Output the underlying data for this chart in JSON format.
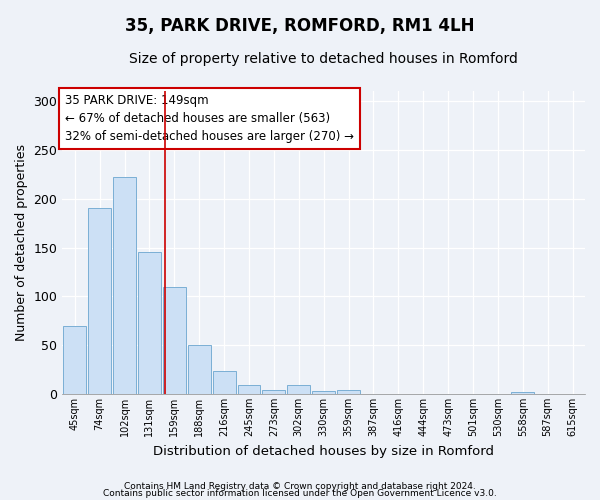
{
  "title1": "35, PARK DRIVE, ROMFORD, RM1 4LH",
  "title2": "Size of property relative to detached houses in Romford",
  "xlabel": "Distribution of detached houses by size in Romford",
  "ylabel": "Number of detached properties",
  "bar_labels": [
    "45sqm",
    "74sqm",
    "102sqm",
    "131sqm",
    "159sqm",
    "188sqm",
    "216sqm",
    "245sqm",
    "273sqm",
    "302sqm",
    "330sqm",
    "359sqm",
    "387sqm",
    "416sqm",
    "444sqm",
    "473sqm",
    "501sqm",
    "530sqm",
    "558sqm",
    "587sqm",
    "615sqm"
  ],
  "bar_values": [
    70,
    190,
    222,
    145,
    110,
    50,
    24,
    9,
    4,
    9,
    3,
    4,
    0,
    0,
    0,
    0,
    0,
    0,
    2,
    0,
    0
  ],
  "bar_color": "#cce0f5",
  "bar_edge_color": "#7aafd4",
  "vline_x_index": 3.62,
  "vline_color": "#cc0000",
  "annotation_text": "35 PARK DRIVE: 149sqm\n← 67% of detached houses are smaller (563)\n32% of semi-detached houses are larger (270) →",
  "annotation_box_color": "#ffffff",
  "annotation_box_edge": "#cc0000",
  "ylim": [
    0,
    310
  ],
  "yticks": [
    0,
    50,
    100,
    150,
    200,
    250,
    300
  ],
  "footer1": "Contains HM Land Registry data © Crown copyright and database right 2024.",
  "footer2": "Contains public sector information licensed under the Open Government Licence v3.0.",
  "background_color": "#eef2f8",
  "plot_background": "#eef2f8",
  "title_fontsize": 12,
  "subtitle_fontsize": 10,
  "annotation_fontsize": 8.5
}
